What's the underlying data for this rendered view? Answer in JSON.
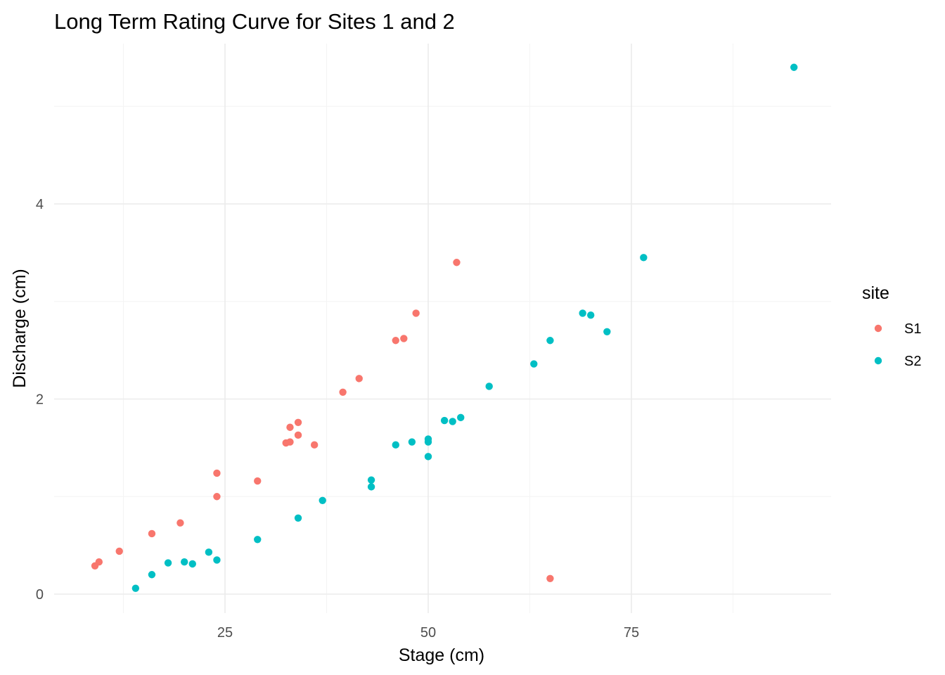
{
  "chart_data": {
    "type": "scatter",
    "title": "Long Term Rating Curve for Sites 1 and 2",
    "xlabel": "Stage (cm)",
    "ylabel": "Discharge (cm)",
    "xlim": [
      5,
      100
    ],
    "ylim": [
      -0.2,
      5.5
    ],
    "x_ticks": [
      25,
      50,
      75
    ],
    "x_tick_labels": [
      "25",
      "50",
      "75"
    ],
    "y_ticks": [
      0,
      2,
      4
    ],
    "y_tick_labels": [
      "0",
      "2",
      "4"
    ],
    "grid": true,
    "legend": {
      "title": "site",
      "placement": "right"
    },
    "series": [
      {
        "name": "S1",
        "color": "#f8766d",
        "points": [
          [
            9,
            0.29
          ],
          [
            9.5,
            0.33
          ],
          [
            12,
            0.44
          ],
          [
            16,
            0.62
          ],
          [
            19.5,
            0.73
          ],
          [
            24,
            1.0
          ],
          [
            24,
            1.24
          ],
          [
            29,
            1.16
          ],
          [
            32.5,
            1.55
          ],
          [
            33,
            1.56
          ],
          [
            33,
            1.71
          ],
          [
            34,
            1.63
          ],
          [
            34,
            1.76
          ],
          [
            36,
            1.53
          ],
          [
            39.5,
            2.07
          ],
          [
            41.5,
            2.21
          ],
          [
            46,
            2.6
          ],
          [
            47,
            2.62
          ],
          [
            48.5,
            2.88
          ],
          [
            53.5,
            3.4
          ],
          [
            65,
            0.16
          ]
        ]
      },
      {
        "name": "S2",
        "color": "#00bfc4",
        "points": [
          [
            14,
            0.06
          ],
          [
            16,
            0.2
          ],
          [
            18,
            0.32
          ],
          [
            20,
            0.33
          ],
          [
            21,
            0.31
          ],
          [
            23,
            0.43
          ],
          [
            24,
            0.35
          ],
          [
            29,
            0.56
          ],
          [
            34,
            0.78
          ],
          [
            37,
            0.96
          ],
          [
            43,
            1.1
          ],
          [
            43,
            1.17
          ],
          [
            46,
            1.53
          ],
          [
            48,
            1.56
          ],
          [
            50,
            1.41
          ],
          [
            50,
            1.56
          ],
          [
            50,
            1.59
          ],
          [
            52,
            1.78
          ],
          [
            53,
            1.77
          ],
          [
            54,
            1.81
          ],
          [
            57.5,
            2.13
          ],
          [
            63,
            2.36
          ],
          [
            65,
            2.6
          ],
          [
            69,
            2.88
          ],
          [
            70,
            2.86
          ],
          [
            72,
            2.69
          ],
          [
            76.5,
            3.45
          ],
          [
            95,
            5.4
          ]
        ]
      }
    ]
  }
}
